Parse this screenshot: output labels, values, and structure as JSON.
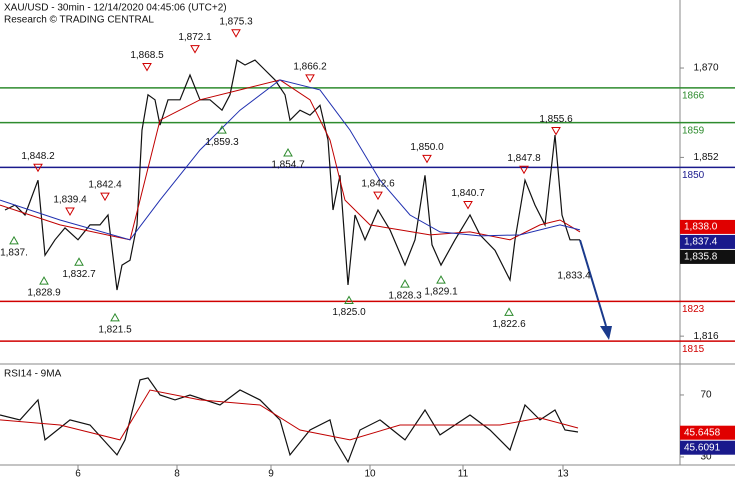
{
  "chart_data": [
    {
      "type": "line",
      "title": "XAU/USD - 30min - 12/14/2020 04:45:06 (UTC+2)",
      "subtitle": "Research © TRADING CENTRAL",
      "xlim": [
        0,
        340
      ],
      "xticks": [
        {
          "value": 39,
          "label": "6"
        },
        {
          "value": 88.5,
          "label": "8"
        },
        {
          "value": 135.5,
          "label": "9"
        },
        {
          "value": 185,
          "label": "10"
        },
        {
          "value": 231.5,
          "label": "11"
        },
        {
          "value": 281.5,
          "label": "13"
        }
      ],
      "ylim": [
        1811.6,
        1883.7
      ],
      "yticks": [
        {
          "value": 1870,
          "label": "1,870"
        },
        {
          "value": 1852,
          "label": "1,852"
        },
        {
          "value": 1816,
          "label": "1,816"
        }
      ],
      "series": [
        {
          "color": "#111111",
          "x": [
            2.5,
            7.5,
            12.5,
            19,
            22.5,
            27.5,
            32.5,
            39,
            45,
            50,
            54,
            58.5,
            61,
            65,
            68.5,
            71,
            74,
            77.5,
            80,
            84,
            90,
            95,
            100,
            105,
            111,
            115,
            118.5,
            122.5,
            127.5,
            132.5,
            137.5,
            142.5,
            145,
            150,
            155,
            160,
            164,
            166.5,
            170,
            174,
            177.5,
            182.5,
            189,
            195,
            202.5,
            207.5,
            212.5,
            216,
            220.5,
            227.5,
            235,
            240,
            247.5,
            255,
            257.5,
            262.5,
            267.5,
            272.5,
            277.5,
            281,
            285,
            290
          ],
          "values": [
            1841.4,
            1842.4,
            1840.4,
            1847.4,
            1832.3,
            1835.4,
            1837.8,
            1835.4,
            1838.4,
            1838.4,
            1840.4,
            1825.3,
            1830.3,
            1831.3,
            1838.4,
            1857.5,
            1864.6,
            1863.6,
            1858.5,
            1863.6,
            1863.6,
            1868.6,
            1863.6,
            1863.6,
            1861.5,
            1864.6,
            1871.6,
            1870.6,
            1871.6,
            1869.6,
            1867.6,
            1864.6,
            1859.5,
            1861.5,
            1860.5,
            1862.5,
            1855.5,
            1841.4,
            1848.4,
            1826.3,
            1840.4,
            1835.4,
            1841.4,
            1837.4,
            1830.3,
            1835.4,
            1848.4,
            1834.4,
            1830.3,
            1835.4,
            1840.4,
            1836.4,
            1833.3,
            1827.3,
            1835.4,
            1847.4,
            1842.4,
            1838.4,
            1856.5,
            1840.4,
            1835.4,
            1835.4
          ]
        },
        {
          "color": "#c00000",
          "x": [
            0,
            30,
            65,
            70,
            80,
            100,
            120,
            140,
            155,
            165,
            172.5,
            185,
            200,
            215,
            235,
            255,
            270,
            280,
            290
          ],
          "values": [
            1842.4,
            1838.4,
            1835.4,
            1843.4,
            1859.5,
            1863.6,
            1865.6,
            1867.6,
            1863.6,
            1855.5,
            1843.4,
            1838.4,
            1837.4,
            1836.4,
            1837.0,
            1835.4,
            1838.4,
            1839.4,
            1837.0
          ]
        },
        {
          "color": "#2030b0",
          "x": [
            0,
            30,
            65,
            80,
            100,
            120,
            140,
            160,
            175,
            190,
            205,
            220,
            240,
            260,
            280,
            290
          ],
          "values": [
            1843.4,
            1839.4,
            1835.4,
            1843.4,
            1853.5,
            1861.5,
            1867.6,
            1865.6,
            1857.5,
            1847.4,
            1840.4,
            1837.0,
            1836.2,
            1836.4,
            1838.4,
            1837.4
          ]
        }
      ],
      "levels": [
        {
          "value": 1866,
          "color": "#2e8b2e"
        },
        {
          "value": 1859,
          "color": "#2e8b2e"
        },
        {
          "value": 1850,
          "color": "#1a1a8c"
        },
        {
          "value": 1823,
          "color": "#d00000"
        },
        {
          "value": 1815,
          "color": "#d00000"
        }
      ],
      "annotations": [
        {
          "x": 19,
          "value": 1848.2,
          "label": "1,848.2",
          "kind": "high"
        },
        {
          "x": 7,
          "value": 1837,
          "label": "1,837.",
          "kind": "low"
        },
        {
          "x": 35,
          "value": 1839.4,
          "label": "1,839.4",
          "kind": "high"
        },
        {
          "x": 52.5,
          "value": 1842.4,
          "label": "1,842.4",
          "kind": "high"
        },
        {
          "x": 22,
          "value": 1828.9,
          "label": "1,828.9",
          "kind": "low"
        },
        {
          "x": 39.5,
          "value": 1832.7,
          "label": "1,832.7",
          "kind": "low"
        },
        {
          "x": 57.5,
          "value": 1821.5,
          "label": "1,821.5",
          "kind": "low"
        },
        {
          "x": 73.5,
          "value": 1868.5,
          "label": "1,868.5",
          "kind": "high"
        },
        {
          "x": 97.5,
          "value": 1872.1,
          "label": "1,872.1",
          "kind": "high"
        },
        {
          "x": 118,
          "value": 1875.3,
          "label": "1,875.3",
          "kind": "high"
        },
        {
          "x": 111,
          "value": 1859.3,
          "label": "1,859.3",
          "kind": "low"
        },
        {
          "x": 155,
          "value": 1866.2,
          "label": "1,866.2",
          "kind": "high"
        },
        {
          "x": 144,
          "value": 1854.7,
          "label": "1,854.7",
          "kind": "low"
        },
        {
          "x": 174.5,
          "value": 1825.0,
          "label": "1,825.0",
          "kind": "low"
        },
        {
          "x": 189,
          "value": 1842.6,
          "label": "1,842.6",
          "kind": "high"
        },
        {
          "x": 213.5,
          "value": 1850.0,
          "label": "1,850.0",
          "kind": "high"
        },
        {
          "x": 202.5,
          "value": 1828.3,
          "label": "1,828.3",
          "kind": "low"
        },
        {
          "x": 220.5,
          "value": 1829.1,
          "label": "1,829.1",
          "kind": "low"
        },
        {
          "x": 234,
          "value": 1840.7,
          "label": "1,840.7",
          "kind": "high"
        },
        {
          "x": 262,
          "value": 1847.8,
          "label": "1,847.8",
          "kind": "high"
        },
        {
          "x": 254.5,
          "value": 1822.6,
          "label": "1,822.6",
          "kind": "low"
        },
        {
          "x": 278,
          "value": 1855.6,
          "label": "1,855.6",
          "kind": "high"
        },
        {
          "x": 287,
          "value": 1833.4,
          "label": "1,833.4",
          "kind": "label"
        }
      ],
      "price_tags": [
        {
          "value": 1838.0,
          "label": "1,838.0",
          "color": "#e00000"
        },
        {
          "value": 1837.4,
          "label": "1,837.4",
          "color": "#1a1a8c"
        },
        {
          "value": 1835.8,
          "label": "1,835.8",
          "color": "#111111"
        }
      ]
    },
    {
      "type": "line",
      "title": "RSI14 - 9MA",
      "ylim": [
        24.8,
        87.4
      ],
      "yticks": [
        70,
        30
      ],
      "series": [
        {
          "color": "#111111",
          "x": [
            0,
            10,
            19,
            22.5,
            35,
            45,
            58.5,
            62.5,
            70,
            74,
            80,
            87.5,
            95,
            110,
            120,
            130,
            140,
            145,
            155,
            165,
            167.5,
            174,
            180,
            190,
            202.5,
            212.5,
            220,
            235,
            245,
            255,
            262.5,
            270,
            277.5,
            282.5,
            289
          ],
          "values": [
            57.1,
            53.9,
            66.8,
            41.0,
            53.9,
            50.6,
            31.3,
            41.0,
            79.7,
            81.0,
            70,
            66.8,
            70,
            63.5,
            73.2,
            66.8,
            53.9,
            31.3,
            47.4,
            53.9,
            41.0,
            26.8,
            47.4,
            53.9,
            41.0,
            60.3,
            44.2,
            57.1,
            47.4,
            34.5,
            63.5,
            53.9,
            60.3,
            47.4,
            46.1
          ]
        },
        {
          "color": "#c00000",
          "x": [
            0,
            30,
            60,
            75,
            100,
            130,
            150,
            175,
            200,
            225,
            250,
            270,
            289
          ],
          "values": [
            53.9,
            50.6,
            41.0,
            73.2,
            66.8,
            63.5,
            47.4,
            41.0,
            50.6,
            50.6,
            50.6,
            55.2,
            48.7
          ]
        }
      ],
      "price_tags": [
        {
          "value": 45.6458,
          "label": "45.6458",
          "color": "#e00000"
        },
        {
          "value": 45.6091,
          "label": "45.6091",
          "color": "#1a1a8c"
        }
      ]
    }
  ]
}
